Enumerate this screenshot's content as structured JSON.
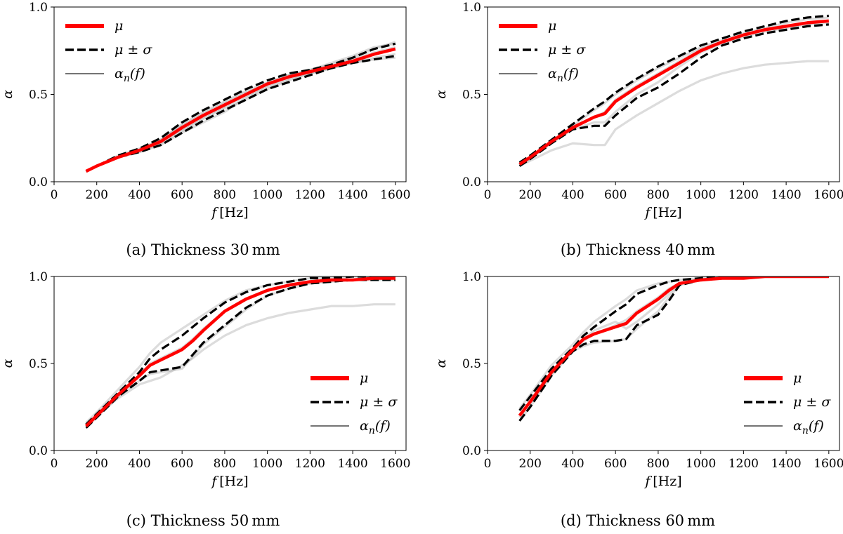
{
  "figure": {
    "captions": [
      "(a) Thickness 30 mm",
      "(b) Thickness 40 mm",
      "(c) Thickness 50 mm",
      "(d) Thickness 60 mm"
    ],
    "colors": {
      "mean": "#ff0000",
      "std": "#000000",
      "samples": "#808080"
    }
  },
  "chart_data": [
    {
      "type": "line",
      "panel": "a",
      "title": "(a) Thickness 30 mm",
      "xlabel": "f [Hz]",
      "ylabel": "α",
      "xlim": [
        0,
        1650
      ],
      "ylim": [
        0,
        1.0
      ],
      "xticks": [
        "0",
        "200",
        "400",
        "600",
        "800",
        "1000",
        "1200",
        "1400",
        "1600"
      ],
      "yticks": [
        "0.0",
        "0.5",
        "1.0"
      ],
      "legend": {
        "placement": "top-left",
        "entries": [
          "μ",
          "μ ± σ",
          "αn(f)"
        ]
      },
      "x": [
        150,
        200,
        300,
        400,
        500,
        600,
        700,
        800,
        900,
        1000,
        1100,
        1200,
        1300,
        1400,
        1500,
        1600
      ],
      "series": [
        {
          "name": "μ",
          "values": [
            0.06,
            0.09,
            0.14,
            0.18,
            0.23,
            0.31,
            0.38,
            0.44,
            0.5,
            0.56,
            0.6,
            0.63,
            0.66,
            0.69,
            0.73,
            0.76
          ]
        },
        {
          "name": "μ + σ",
          "values": [
            0.06,
            0.09,
            0.15,
            0.19,
            0.25,
            0.34,
            0.41,
            0.47,
            0.53,
            0.58,
            0.62,
            0.64,
            0.67,
            0.71,
            0.76,
            0.79
          ]
        },
        {
          "name": "μ − σ",
          "values": [
            0.06,
            0.09,
            0.14,
            0.17,
            0.21,
            0.28,
            0.35,
            0.41,
            0.47,
            0.53,
            0.57,
            0.61,
            0.65,
            0.68,
            0.7,
            0.72
          ]
        }
      ],
      "samples": [
        [
          0.06,
          0.09,
          0.14,
          0.18,
          0.24,
          0.33,
          0.4,
          0.46,
          0.52,
          0.57,
          0.61,
          0.64,
          0.67,
          0.71,
          0.76,
          0.8
        ],
        [
          0.06,
          0.09,
          0.14,
          0.17,
          0.21,
          0.28,
          0.34,
          0.4,
          0.48,
          0.54,
          0.59,
          0.62,
          0.65,
          0.68,
          0.71,
          0.73
        ],
        [
          0.06,
          0.09,
          0.14,
          0.18,
          0.23,
          0.3,
          0.37,
          0.43,
          0.49,
          0.55,
          0.6,
          0.63,
          0.66,
          0.7,
          0.74,
          0.77
        ],
        [
          0.06,
          0.09,
          0.15,
          0.19,
          0.24,
          0.32,
          0.39,
          0.45,
          0.51,
          0.56,
          0.61,
          0.64,
          0.68,
          0.72,
          0.77,
          0.79
        ],
        [
          0.06,
          0.09,
          0.14,
          0.17,
          0.22,
          0.29,
          0.36,
          0.42,
          0.47,
          0.53,
          0.58,
          0.62,
          0.65,
          0.68,
          0.7,
          0.71
        ]
      ]
    },
    {
      "type": "line",
      "panel": "b",
      "title": "(b) Thickness 40 mm",
      "xlabel": "f [Hz]",
      "ylabel": "α",
      "xlim": [
        0,
        1650
      ],
      "ylim": [
        0,
        1.0
      ],
      "xticks": [
        "0",
        "200",
        "400",
        "600",
        "800",
        "1000",
        "1200",
        "1400",
        "1600"
      ],
      "yticks": [
        "0.0",
        "0.5",
        "1.0"
      ],
      "legend": {
        "placement": "top-left",
        "entries": [
          "μ",
          "μ ± σ",
          "αn(f)"
        ]
      },
      "x": [
        150,
        200,
        300,
        400,
        500,
        550,
        600,
        700,
        800,
        900,
        1000,
        1100,
        1200,
        1300,
        1400,
        1500,
        1600
      ],
      "series": [
        {
          "name": "μ",
          "values": [
            0.1,
            0.14,
            0.23,
            0.31,
            0.37,
            0.39,
            0.46,
            0.54,
            0.61,
            0.68,
            0.75,
            0.8,
            0.84,
            0.87,
            0.89,
            0.91,
            0.92
          ]
        },
        {
          "name": "μ + σ",
          "values": [
            0.11,
            0.15,
            0.24,
            0.33,
            0.42,
            0.46,
            0.51,
            0.59,
            0.66,
            0.72,
            0.78,
            0.82,
            0.86,
            0.89,
            0.92,
            0.94,
            0.95
          ]
        },
        {
          "name": "μ − σ",
          "values": [
            0.09,
            0.13,
            0.22,
            0.3,
            0.32,
            0.32,
            0.38,
            0.48,
            0.54,
            0.62,
            0.71,
            0.78,
            0.82,
            0.85,
            0.87,
            0.89,
            0.9
          ]
        }
      ],
      "samples": [
        [
          0.1,
          0.14,
          0.23,
          0.32,
          0.41,
          0.45,
          0.5,
          0.58,
          0.65,
          0.71,
          0.77,
          0.81,
          0.85,
          0.88,
          0.91,
          0.93,
          0.94
        ],
        [
          0.09,
          0.13,
          0.22,
          0.3,
          0.34,
          0.34,
          0.4,
          0.5,
          0.57,
          0.66,
          0.74,
          0.79,
          0.83,
          0.86,
          0.88,
          0.9,
          0.91
        ],
        [
          0.1,
          0.14,
          0.23,
          0.31,
          0.37,
          0.4,
          0.47,
          0.55,
          0.62,
          0.69,
          0.76,
          0.8,
          0.84,
          0.87,
          0.89,
          0.91,
          0.92
        ],
        [
          0.09,
          0.12,
          0.18,
          0.22,
          0.21,
          0.21,
          0.3,
          0.38,
          0.45,
          0.52,
          0.58,
          0.62,
          0.65,
          0.67,
          0.68,
          0.69,
          0.69
        ]
      ]
    },
    {
      "type": "line",
      "panel": "c",
      "title": "(c) Thickness 50 mm",
      "xlabel": "f [Hz]",
      "ylabel": "α",
      "xlim": [
        0,
        1650
      ],
      "ylim": [
        0,
        1.0
      ],
      "xticks": [
        "0",
        "200",
        "400",
        "600",
        "800",
        "1000",
        "1200",
        "1400",
        "1600"
      ],
      "yticks": [
        "0.0",
        "0.5",
        "1.0"
      ],
      "legend": {
        "placement": "center-right",
        "entries": [
          "μ",
          "μ ± σ",
          "αn(f)"
        ]
      },
      "x": [
        150,
        200,
        300,
        400,
        450,
        500,
        600,
        650,
        700,
        800,
        900,
        1000,
        1100,
        1200,
        1300,
        1400,
        1500,
        1600
      ],
      "series": [
        {
          "name": "μ",
          "values": [
            0.14,
            0.2,
            0.32,
            0.43,
            0.49,
            0.52,
            0.58,
            0.63,
            0.69,
            0.8,
            0.87,
            0.92,
            0.95,
            0.97,
            0.98,
            0.98,
            0.99,
            0.99
          ]
        },
        {
          "name": "μ + σ",
          "values": [
            0.15,
            0.21,
            0.33,
            0.45,
            0.53,
            0.58,
            0.66,
            0.71,
            0.76,
            0.85,
            0.91,
            0.95,
            0.97,
            0.99,
            0.99,
            1.0,
            1.0,
            1.0
          ]
        },
        {
          "name": "μ − σ",
          "values": [
            0.13,
            0.19,
            0.31,
            0.4,
            0.45,
            0.46,
            0.48,
            0.55,
            0.62,
            0.72,
            0.82,
            0.89,
            0.93,
            0.96,
            0.97,
            0.98,
            0.98,
            0.98
          ]
        }
      ],
      "samples": [
        [
          0.16,
          0.22,
          0.35,
          0.48,
          0.56,
          0.62,
          0.7,
          0.74,
          0.78,
          0.86,
          0.92,
          0.95,
          0.97,
          0.99,
          0.99,
          1.0,
          1.0,
          1.0
        ],
        [
          0.13,
          0.19,
          0.31,
          0.4,
          0.44,
          0.45,
          0.47,
          0.54,
          0.61,
          0.71,
          0.81,
          0.89,
          0.93,
          0.96,
          0.97,
          0.98,
          0.98,
          0.98
        ],
        [
          0.14,
          0.2,
          0.32,
          0.43,
          0.5,
          0.53,
          0.59,
          0.64,
          0.7,
          0.8,
          0.87,
          0.92,
          0.95,
          0.97,
          0.98,
          0.98,
          0.99,
          0.99
        ],
        [
          0.15,
          0.2,
          0.3,
          0.38,
          0.4,
          0.42,
          0.49,
          0.53,
          0.58,
          0.66,
          0.72,
          0.76,
          0.79,
          0.81,
          0.83,
          0.83,
          0.84,
          0.84
        ]
      ]
    },
    {
      "type": "line",
      "panel": "d",
      "title": "(d) Thickness 60 mm",
      "xlabel": "f [Hz]",
      "ylabel": "α",
      "xlim": [
        0,
        1650
      ],
      "ylim": [
        0,
        1.0
      ],
      "xticks": [
        "0",
        "200",
        "400",
        "600",
        "800",
        "1000",
        "1200",
        "1400",
        "1600"
      ],
      "yticks": [
        "0.0",
        "0.5",
        "1.0"
      ],
      "legend": {
        "placement": "center-right",
        "entries": [
          "μ",
          "μ ± σ",
          "αn(f)"
        ]
      },
      "x": [
        150,
        200,
        300,
        400,
        450,
        500,
        600,
        650,
        700,
        800,
        850,
        900,
        1000,
        1100,
        1200,
        1300,
        1400,
        1500,
        1600
      ],
      "series": [
        {
          "name": "μ",
          "values": [
            0.2,
            0.28,
            0.45,
            0.58,
            0.64,
            0.67,
            0.71,
            0.73,
            0.79,
            0.87,
            0.92,
            0.96,
            0.98,
            0.99,
            0.99,
            1.0,
            1.0,
            1.0,
            1.0
          ]
        },
        {
          "name": "μ + σ",
          "values": [
            0.23,
            0.31,
            0.47,
            0.59,
            0.66,
            0.71,
            0.8,
            0.84,
            0.9,
            0.95,
            0.97,
            0.98,
            0.99,
            1.0,
            1.0,
            1.0,
            1.0,
            1.0,
            1.0
          ]
        },
        {
          "name": "μ − σ",
          "values": [
            0.17,
            0.25,
            0.43,
            0.57,
            0.61,
            0.63,
            0.63,
            0.64,
            0.72,
            0.78,
            0.86,
            0.95,
            0.98,
            0.99,
            0.99,
            1.0,
            1.0,
            1.0,
            1.0
          ]
        }
      ],
      "samples": [
        [
          0.24,
          0.32,
          0.49,
          0.61,
          0.68,
          0.74,
          0.83,
          0.87,
          0.92,
          0.96,
          0.97,
          0.98,
          0.99,
          1.0,
          1.0,
          1.0,
          1.0,
          1.0,
          1.0
        ],
        [
          0.17,
          0.25,
          0.43,
          0.57,
          0.6,
          0.62,
          0.63,
          0.64,
          0.7,
          0.8,
          0.88,
          0.95,
          0.98,
          0.99,
          0.99,
          1.0,
          1.0,
          1.0,
          1.0
        ],
        [
          0.2,
          0.28,
          0.45,
          0.58,
          0.63,
          0.67,
          0.72,
          0.75,
          0.8,
          0.88,
          0.93,
          0.96,
          0.98,
          0.99,
          1.0,
          1.0,
          1.0,
          1.0,
          1.0
        ],
        [
          0.19,
          0.27,
          0.44,
          0.58,
          0.64,
          0.69,
          0.74,
          0.7,
          0.74,
          0.84,
          0.9,
          0.96,
          0.98,
          0.99,
          1.0,
          1.0,
          1.0,
          1.0,
          1.0
        ]
      ]
    }
  ]
}
